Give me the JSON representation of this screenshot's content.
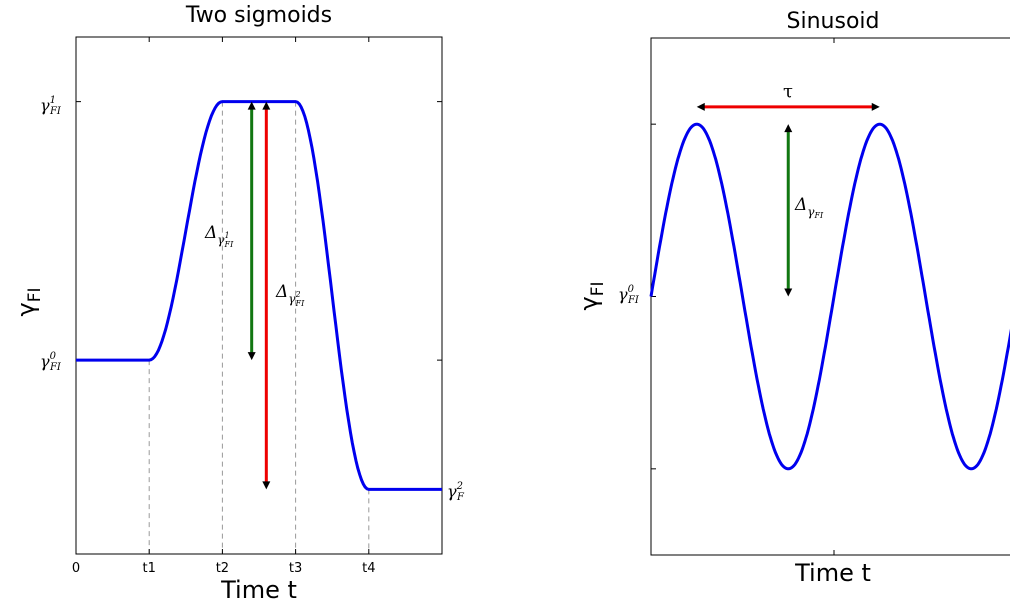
{
  "chart_data": [
    {
      "type": "line",
      "title": "Two sigmoids",
      "xlabel": "Time t",
      "ylabel_main": "γ",
      "ylabel_sub": "FI",
      "x_ticks": [
        "0",
        "t1",
        "t2",
        "t3",
        "t4"
      ],
      "y_ticks": [
        {
          "main": "γ",
          "sub": "FI",
          "sup": "1",
          "value": 1.0
        },
        {
          "main": "γ",
          "sub": "FI",
          "sup": "0",
          "value": 0.0
        }
      ],
      "right_label": {
        "main": "γ",
        "sub": "F",
        "sup": "2",
        "value": -0.5
      },
      "xlim": [
        0,
        5
      ],
      "ylim": [
        -0.75,
        1.25
      ],
      "series": [
        {
          "color": "#0000ee",
          "x": [
            0,
            1,
            1.2,
            1.4,
            1.6,
            1.8,
            2,
            3,
            3.2,
            3.4,
            3.6,
            3.8,
            4,
            5
          ],
          "y": [
            0,
            0,
            0.1,
            0.35,
            0.65,
            0.9,
            1,
            1,
            0.85,
            0.5,
            0.05,
            -0.35,
            -0.5,
            -0.5
          ]
        }
      ],
      "vlines": [
        1,
        2,
        3,
        4
      ],
      "arrows": [
        {
          "color": "#117711",
          "x": 2.4,
          "y_top": 1.0,
          "y_bottom": 0.0,
          "label_main": "Δ",
          "label_sub": "γ",
          "label_subsub": "FI",
          "label_subsup": "1"
        },
        {
          "color": "#ee0000",
          "x": 2.6,
          "y_top": 1.0,
          "y_bottom": -0.5,
          "label_main": "Δ",
          "label_sub": "γ",
          "label_subsub": "FI",
          "label_subsup": "2"
        }
      ],
      "grid": false
    },
    {
      "type": "line",
      "title": "Sinusoid",
      "xlabel": "Time t",
      "ylabel_main": "γ",
      "ylabel_sub": "FI",
      "y_ticks": [
        {
          "main": "γ",
          "sub": "FI",
          "sup": "0",
          "value": 0.0
        }
      ],
      "xlim": [
        0,
        1
      ],
      "ylim": [
        -1.5,
        1.5
      ],
      "series": [
        {
          "color": "#0000ee",
          "function": "sin",
          "amplitude": 1,
          "period": 0.5,
          "phase_x_of_first_peak": 0.125
        }
      ],
      "arrows": [
        {
          "color": "#ee0000",
          "orientation": "horizontal",
          "x_start": 0.125,
          "x_end": 0.625,
          "y": 1.1,
          "label": "τ"
        },
        {
          "color": "#117711",
          "orientation": "vertical",
          "x": 0.375,
          "y_top": 1.0,
          "y_bottom": 0.0,
          "label_main": "Δ",
          "label_sub": "γ",
          "label_subsub": "FI"
        }
      ],
      "grid": false
    }
  ]
}
